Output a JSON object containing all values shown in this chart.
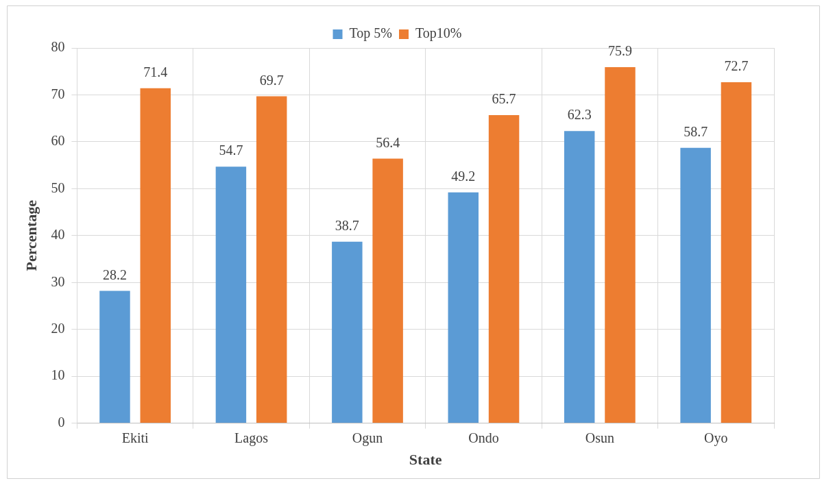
{
  "chart_data": {
    "type": "bar",
    "xlabel": "State",
    "ylabel": "Percentage",
    "categories": [
      "Ekiti",
      "Lagos",
      "Ogun",
      "Ondo",
      "Osun",
      "Oyo"
    ],
    "series": [
      {
        "name": "Top 5%",
        "color": "#5b9bd5",
        "values": [
          28.2,
          54.7,
          38.7,
          49.2,
          62.3,
          58.7
        ]
      },
      {
        "name": "Top10%",
        "color": "#ed7d31",
        "values": [
          71.4,
          69.7,
          56.4,
          65.7,
          75.9,
          72.7
        ]
      }
    ],
    "ylim": [
      0,
      80
    ],
    "yticks": [
      0,
      10,
      20,
      30,
      40,
      50,
      60,
      70,
      80
    ],
    "grid": true,
    "legend": "top",
    "data_labels": true
  }
}
